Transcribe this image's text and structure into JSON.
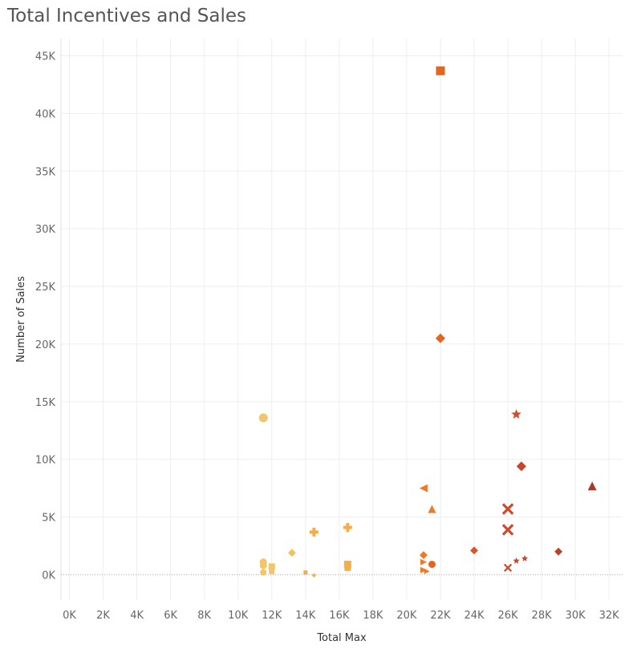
{
  "chart_data": {
    "type": "scatter",
    "title": "Total Incentives and Sales",
    "xlabel": "Total Max",
    "ylabel": "Number of Sales",
    "xlim": [
      -500,
      32800
    ],
    "ylim": [
      -2200,
      46500
    ],
    "x_ticks": [
      0,
      2000,
      4000,
      6000,
      8000,
      10000,
      12000,
      14000,
      16000,
      18000,
      20000,
      22000,
      24000,
      26000,
      28000,
      30000,
      32000
    ],
    "x_tick_labels": [
      "0K",
      "2K",
      "4K",
      "6K",
      "8K",
      "10K",
      "12K",
      "14K",
      "16K",
      "18K",
      "20K",
      "22K",
      "24K",
      "26K",
      "28K",
      "30K",
      "32K"
    ],
    "y_ticks": [
      0,
      5000,
      10000,
      15000,
      20000,
      25000,
      30000,
      35000,
      40000,
      45000
    ],
    "y_tick_labels": [
      "0K",
      "5K",
      "10K",
      "15K",
      "20K",
      "25K",
      "30K",
      "35K",
      "40K",
      "45K"
    ],
    "grid": true,
    "legend": "none",
    "points": [
      {
        "x": 22000,
        "y": 43700,
        "shape": "square",
        "color": "#e8641c",
        "size": 11
      },
      {
        "x": 22000,
        "y": 20500,
        "shape": "diamond",
        "color": "#e8641c",
        "size": 11
      },
      {
        "x": 11500,
        "y": 13600,
        "shape": "circle",
        "color": "#f2c668",
        "size": 11
      },
      {
        "x": 26500,
        "y": 13900,
        "shape": "star",
        "color": "#cf4f2e",
        "size": 12
      },
      {
        "x": 26800,
        "y": 9400,
        "shape": "diamond",
        "color": "#c9442a",
        "size": 11
      },
      {
        "x": 31000,
        "y": 7700,
        "shape": "triangle-up",
        "color": "#a73a2a",
        "size": 11
      },
      {
        "x": 21000,
        "y": 7500,
        "shape": "triangle-left",
        "color": "#ee7a28",
        "size": 10
      },
      {
        "x": 21500,
        "y": 5700,
        "shape": "triangle-up",
        "color": "#ee7a28",
        "size": 10
      },
      {
        "x": 26000,
        "y": 5700,
        "shape": "cross",
        "color": "#cf4a2a",
        "size": 10
      },
      {
        "x": 26000,
        "y": 3900,
        "shape": "cross",
        "color": "#cf4a2a",
        "size": 10
      },
      {
        "x": 14500,
        "y": 3700,
        "shape": "plus",
        "color": "#f5ad4a",
        "size": 11
      },
      {
        "x": 16500,
        "y": 4100,
        "shape": "plus",
        "color": "#f5ad4a",
        "size": 11
      },
      {
        "x": 13200,
        "y": 1900,
        "shape": "diamond",
        "color": "#f5c062",
        "size": 9
      },
      {
        "x": 24000,
        "y": 2100,
        "shape": "diamond",
        "color": "#d9542b",
        "size": 9
      },
      {
        "x": 29000,
        "y": 2000,
        "shape": "diamond",
        "color": "#b8432d",
        "size": 9
      },
      {
        "x": 21000,
        "y": 1700,
        "shape": "diamond",
        "color": "#ee7a28",
        "size": 9
      },
      {
        "x": 11500,
        "y": 1100,
        "shape": "circle",
        "color": "#f2c668",
        "size": 9
      },
      {
        "x": 11500,
        "y": 800,
        "shape": "circle",
        "color": "#f2c668",
        "size": 9
      },
      {
        "x": 11500,
        "y": 200,
        "shape": "circle",
        "color": "#f2c668",
        "size": 8
      },
      {
        "x": 12000,
        "y": 700,
        "shape": "square",
        "color": "#f2c668",
        "size": 8
      },
      {
        "x": 12000,
        "y": 300,
        "shape": "square",
        "color": "#f2c668",
        "size": 7
      },
      {
        "x": 16500,
        "y": 900,
        "shape": "square",
        "color": "#f5ad4a",
        "size": 9
      },
      {
        "x": 16500,
        "y": 600,
        "shape": "square",
        "color": "#f5ad4a",
        "size": 8
      },
      {
        "x": 14000,
        "y": 200,
        "shape": "square",
        "color": "#f5ad4a",
        "size": 5
      },
      {
        "x": 14500,
        "y": -50,
        "shape": "diamond",
        "color": "#f5ad4a",
        "size": 5
      },
      {
        "x": 21000,
        "y": 1100,
        "shape": "triangle-right",
        "color": "#ee7a28",
        "size": 8
      },
      {
        "x": 21000,
        "y": 400,
        "shape": "triangle-right",
        "color": "#ee7a28",
        "size": 8
      },
      {
        "x": 21200,
        "y": 300,
        "shape": "triangle-right",
        "color": "#ee7a28",
        "size": 7
      },
      {
        "x": 21500,
        "y": 900,
        "shape": "circle",
        "color": "#e8641c",
        "size": 9
      },
      {
        "x": 26000,
        "y": 600,
        "shape": "cross",
        "color": "#cf4a2a",
        "size": 7
      },
      {
        "x": 26500,
        "y": 1200,
        "shape": "star",
        "color": "#c9442a",
        "size": 8
      },
      {
        "x": 27000,
        "y": 1400,
        "shape": "star",
        "color": "#c9442a",
        "size": 8
      }
    ]
  }
}
